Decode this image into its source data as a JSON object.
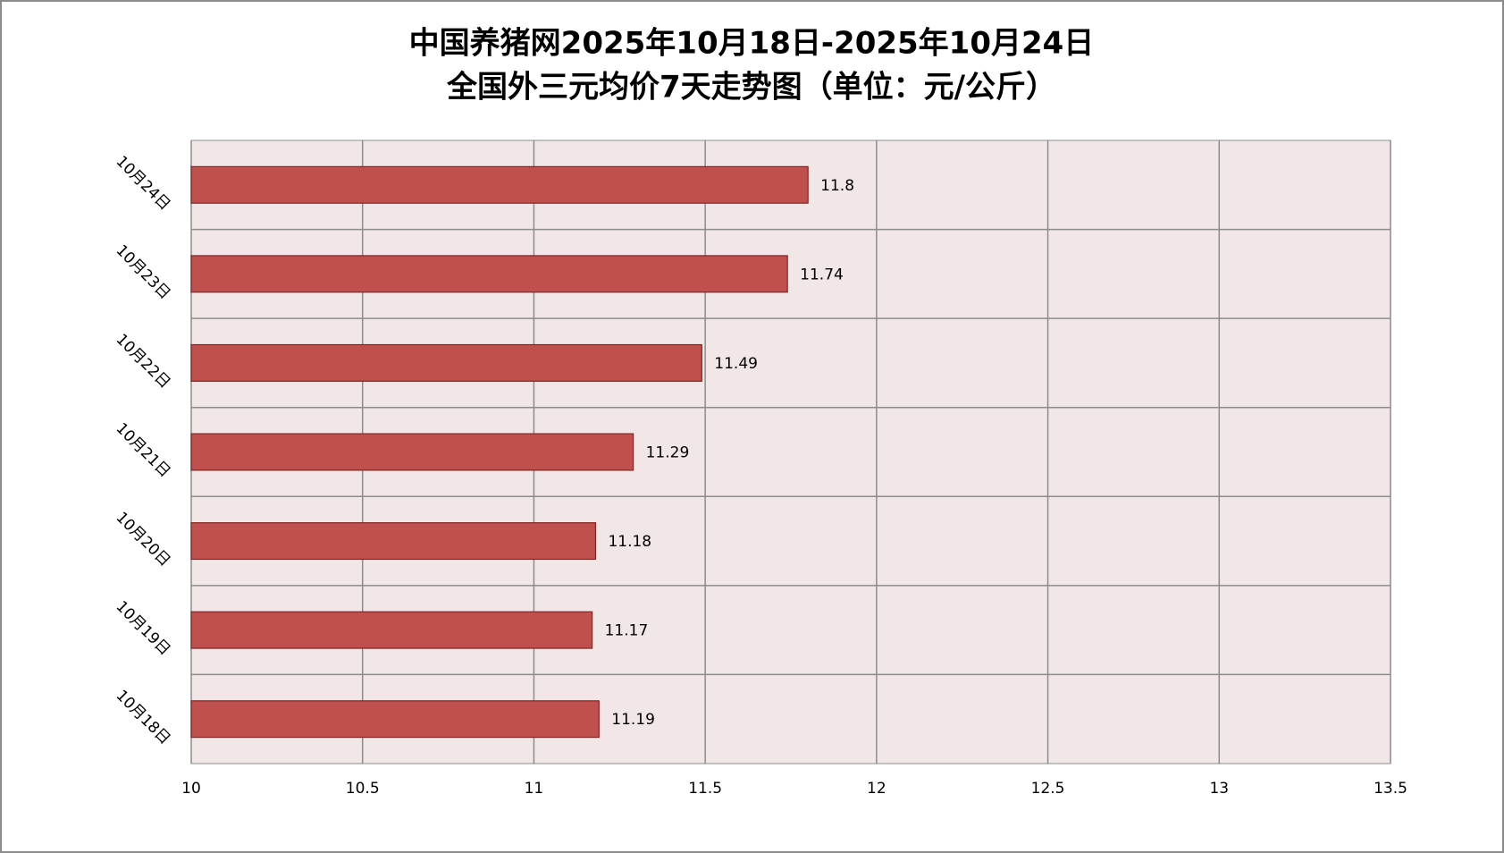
{
  "chart_data": {
    "type": "hbar",
    "title": [
      "中国养猪网2025年10月18日-2025年10月24日",
      "全国外三元均价7天走势图（单位：元/公斤）"
    ],
    "categories": [
      "10月18日",
      "10月19日",
      "10月20日",
      "10月21日",
      "10月22日",
      "10月23日",
      "10月24日"
    ],
    "values": [
      11.19,
      11.17,
      11.18,
      11.29,
      11.49,
      11.74,
      11.8
    ],
    "color": "#c0504d",
    "xlim": [
      10,
      13.5
    ],
    "xticks": [
      10,
      10.5,
      11,
      11.5,
      12,
      12.5,
      13,
      13.5
    ],
    "grid": true
  }
}
